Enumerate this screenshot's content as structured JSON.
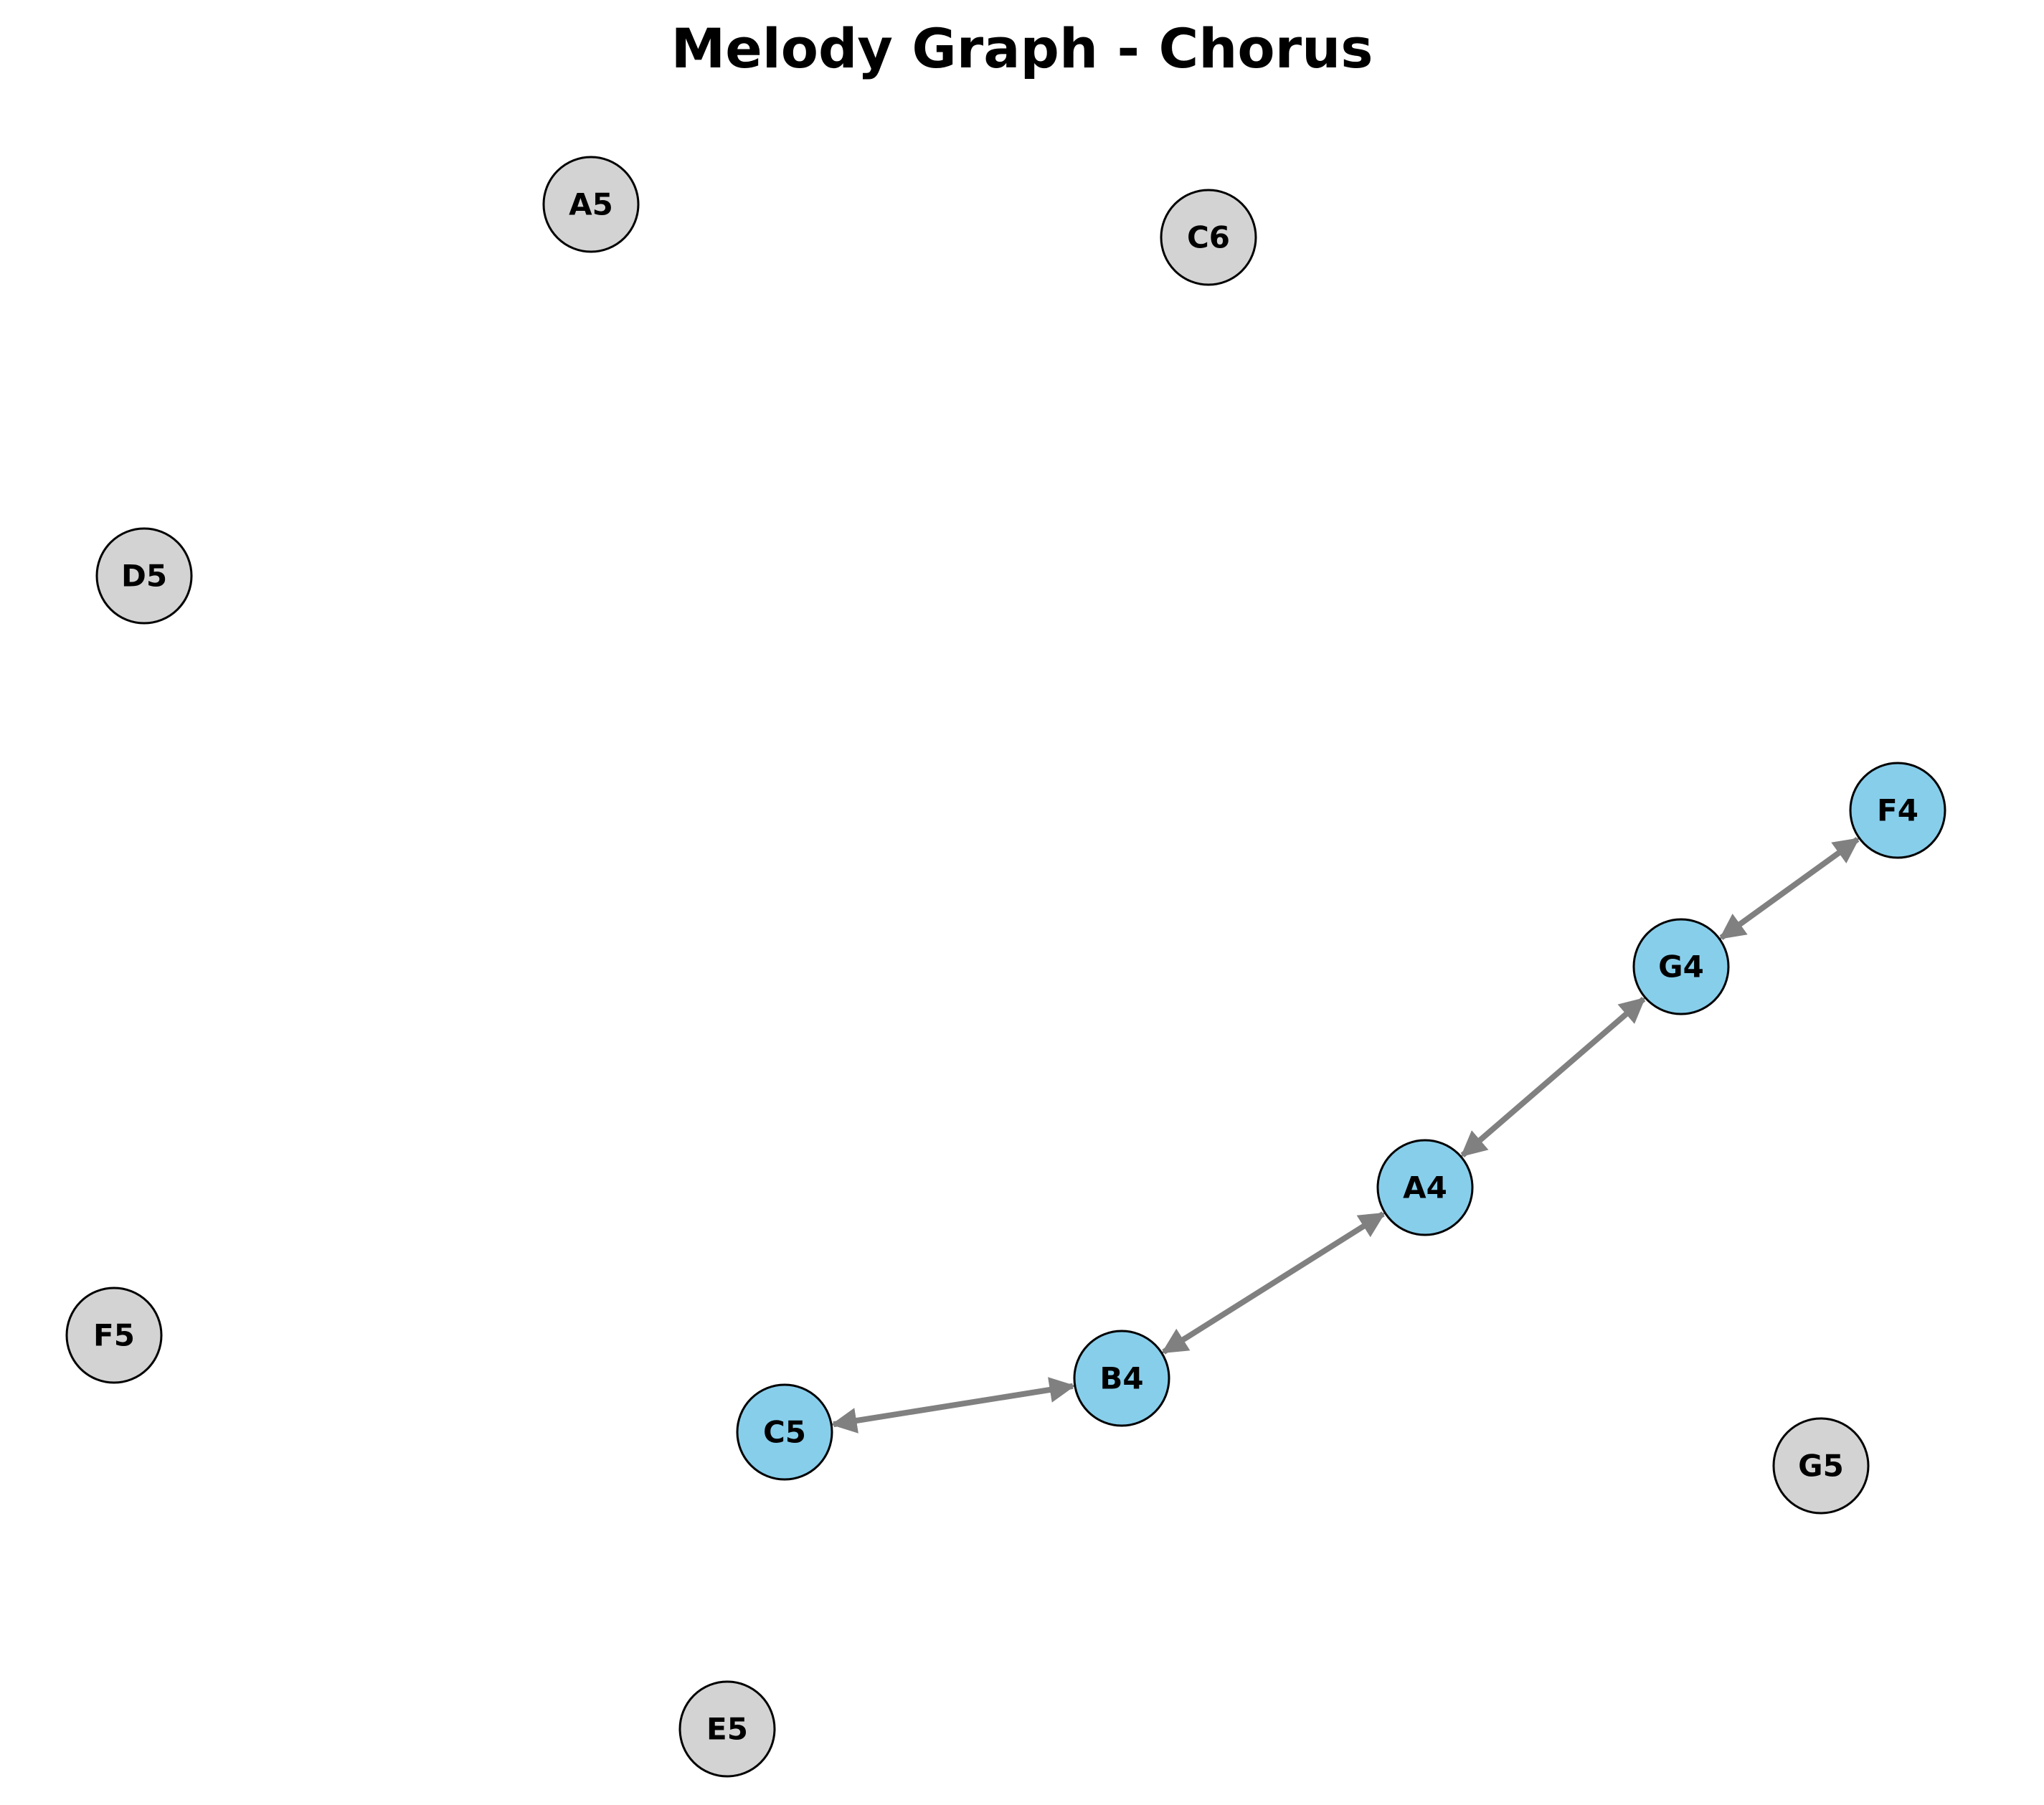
{
  "title": "Melody Graph - Chorus",
  "colors": {
    "active_node": "#87ceeb",
    "inactive_node": "#d3d3d3",
    "node_stroke": "#000000",
    "edge": "#808080",
    "label": "#000000"
  },
  "nodes": [
    {
      "id": "A5",
      "label": "A5",
      "active": false
    },
    {
      "id": "C6",
      "label": "C6",
      "active": false
    },
    {
      "id": "D5",
      "label": "D5",
      "active": false
    },
    {
      "id": "F4",
      "label": "F4",
      "active": true
    },
    {
      "id": "G4",
      "label": "G4",
      "active": true
    },
    {
      "id": "A4",
      "label": "A4",
      "active": true
    },
    {
      "id": "F5",
      "label": "F5",
      "active": false
    },
    {
      "id": "B4",
      "label": "B4",
      "active": true
    },
    {
      "id": "C5",
      "label": "C5",
      "active": true
    },
    {
      "id": "G5",
      "label": "G5",
      "active": false
    },
    {
      "id": "E5",
      "label": "E5",
      "active": false
    }
  ],
  "edges": [
    {
      "from": "C5",
      "to": "B4",
      "bidirectional": true
    },
    {
      "from": "B4",
      "to": "A4",
      "bidirectional": true
    },
    {
      "from": "A4",
      "to": "G4",
      "bidirectional": true
    },
    {
      "from": "G4",
      "to": "F4",
      "bidirectional": true
    }
  ]
}
